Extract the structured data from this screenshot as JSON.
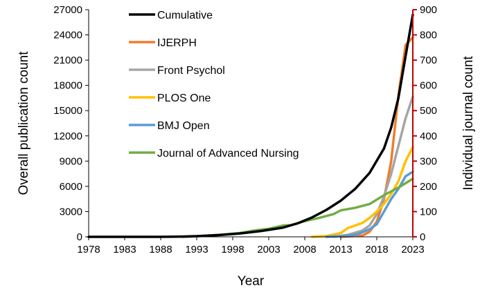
{
  "chart_data": {
    "type": "line",
    "xlabel": "Year",
    "ylabel_left": "Overall publication count",
    "ylabel_right": "Individual journal count",
    "xlim": [
      1978,
      2023
    ],
    "ylim_left": [
      0,
      27000
    ],
    "ylim_right": [
      0,
      900
    ],
    "x_ticks": [
      "1978",
      "1983",
      "1988",
      "1993",
      "1998",
      "2003",
      "2008",
      "2013",
      "2018",
      "2023"
    ],
    "y_ticks_left": [
      "0",
      "3000",
      "6000",
      "9000",
      "12000",
      "15000",
      "18000",
      "21000",
      "24000",
      "27000"
    ],
    "y_ticks_right": [
      "0",
      "100",
      "200",
      "300",
      "400",
      "500",
      "600",
      "700",
      "800",
      "900"
    ],
    "grid": false,
    "legend_position": "top-left",
    "right_axis_color": "#c00000",
    "series": [
      {
        "name": "Cumulative",
        "axis": "left",
        "color": "#000000",
        "points": [
          [
            1978,
            0
          ],
          [
            1983,
            0
          ],
          [
            1988,
            0
          ],
          [
            1991,
            30
          ],
          [
            1993,
            80
          ],
          [
            1996,
            200
          ],
          [
            1999,
            400
          ],
          [
            2002,
            700
          ],
          [
            2005,
            1100
          ],
          [
            2007,
            1600
          ],
          [
            2009,
            2300
          ],
          [
            2011,
            3200
          ],
          [
            2013,
            4300
          ],
          [
            2015,
            5700
          ],
          [
            2017,
            7600
          ],
          [
            2019,
            10500
          ],
          [
            2020,
            13000
          ],
          [
            2021,
            16500
          ],
          [
            2022,
            21500
          ],
          [
            2023,
            26400
          ]
        ]
      },
      {
        "name": "IJERPH",
        "axis": "right",
        "color": "#ed7d31",
        "points": [
          [
            2013,
            0
          ],
          [
            2016,
            5
          ],
          [
            2017,
            20
          ],
          [
            2018,
            60
          ],
          [
            2019,
            150
          ],
          [
            2020,
            300
          ],
          [
            2021,
            560
          ],
          [
            2022,
            760
          ],
          [
            2023,
            790
          ]
        ]
      },
      {
        "name": "Front Psychol",
        "axis": "right",
        "color": "#a5a5a5",
        "points": [
          [
            2012,
            0
          ],
          [
            2014,
            8
          ],
          [
            2016,
            25
          ],
          [
            2017,
            45
          ],
          [
            2018,
            90
          ],
          [
            2019,
            160
          ],
          [
            2020,
            250
          ],
          [
            2021,
            360
          ],
          [
            2022,
            470
          ],
          [
            2023,
            555
          ]
        ]
      },
      {
        "name": "PLOS One",
        "axis": "right",
        "color": "#ffc000",
        "points": [
          [
            2009,
            0
          ],
          [
            2011,
            3
          ],
          [
            2013,
            15
          ],
          [
            2014,
            35
          ],
          [
            2016,
            55
          ],
          [
            2017,
            75
          ],
          [
            2018,
            100
          ],
          [
            2019,
            130
          ],
          [
            2020,
            170
          ],
          [
            2021,
            220
          ],
          [
            2022,
            300
          ],
          [
            2023,
            355
          ]
        ]
      },
      {
        "name": "BMJ Open",
        "axis": "right",
        "color": "#5b9bd5",
        "points": [
          [
            2011,
            0
          ],
          [
            2013,
            3
          ],
          [
            2015,
            8
          ],
          [
            2016,
            18
          ],
          [
            2017,
            30
          ],
          [
            2018,
            50
          ],
          [
            2019,
            100
          ],
          [
            2020,
            150
          ],
          [
            2021,
            190
          ],
          [
            2022,
            240
          ],
          [
            2023,
            258
          ]
        ]
      },
      {
        "name": "Journal of Advanced Nursing",
        "axis": "right",
        "color": "#70ad47",
        "points": [
          [
            1991,
            0
          ],
          [
            1993,
            2
          ],
          [
            1996,
            8
          ],
          [
            1999,
            15
          ],
          [
            2001,
            25
          ],
          [
            2003,
            32
          ],
          [
            2005,
            45
          ],
          [
            2006,
            46
          ],
          [
            2008,
            62
          ],
          [
            2010,
            75
          ],
          [
            2012,
            90
          ],
          [
            2013,
            105
          ],
          [
            2015,
            115
          ],
          [
            2017,
            130
          ],
          [
            2019,
            165
          ],
          [
            2021,
            195
          ],
          [
            2023,
            230
          ]
        ]
      }
    ]
  }
}
